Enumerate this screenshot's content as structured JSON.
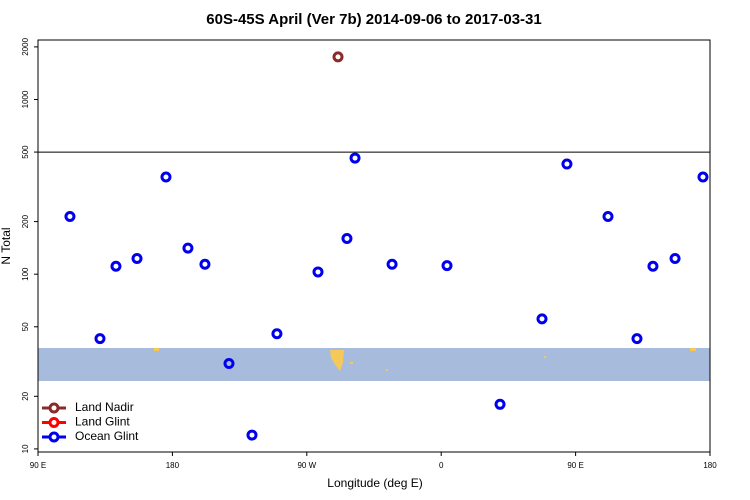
{
  "chart_data": {
    "type": "scatter",
    "title": "60S-45S April (Ver 7b)   2014-09-06 to 2017-03-31",
    "x_label": "Longitude (deg E)",
    "y_label": "N Total",
    "log_y": true,
    "xlim": [
      90,
      540
    ],
    "xticks": [
      {
        "value": 90,
        "label": "90 E"
      },
      {
        "value": 180,
        "label": "180"
      },
      {
        "value": 270,
        "label": "90 W"
      },
      {
        "value": 360,
        "label": "0"
      },
      {
        "value": 450,
        "label": "90 E"
      },
      {
        "value": 540,
        "label": "180"
      }
    ],
    "ylim": [
      9.6,
      2190
    ],
    "yticks": [
      10,
      20,
      50,
      100,
      200,
      500,
      1000,
      2000
    ],
    "reference_line": 500,
    "legend": "bottom-left",
    "series": [
      {
        "name": "Land Nadir",
        "color": "#8b2a2a",
        "x": [
          290.9
        ],
        "values": [
          1754
        ]
      },
      {
        "name": "Land Glint",
        "color": "#ff0000",
        "x": [],
        "values": []
      },
      {
        "name": "Ocean Glint",
        "color": "#0000ee",
        "x": [
          111.4,
          131.5,
          142.2,
          156.3,
          175.7,
          190.4,
          201.8,
          217.9,
          233.3,
          250.0,
          277.5,
          296.9,
          302.3,
          327.1,
          363.9,
          399.4,
          427.5,
          444.2,
          471.7,
          491.1,
          501.8,
          516.6,
          535.3
        ],
        "values": [
          214,
          42.8,
          111,
          123,
          360,
          141,
          114,
          30.8,
          12.0,
          45.6,
          103,
          160,
          462,
          114,
          112,
          18.0,
          55.5,
          427,
          214,
          42.8,
          111,
          123,
          360
        ]
      }
    ]
  }
}
